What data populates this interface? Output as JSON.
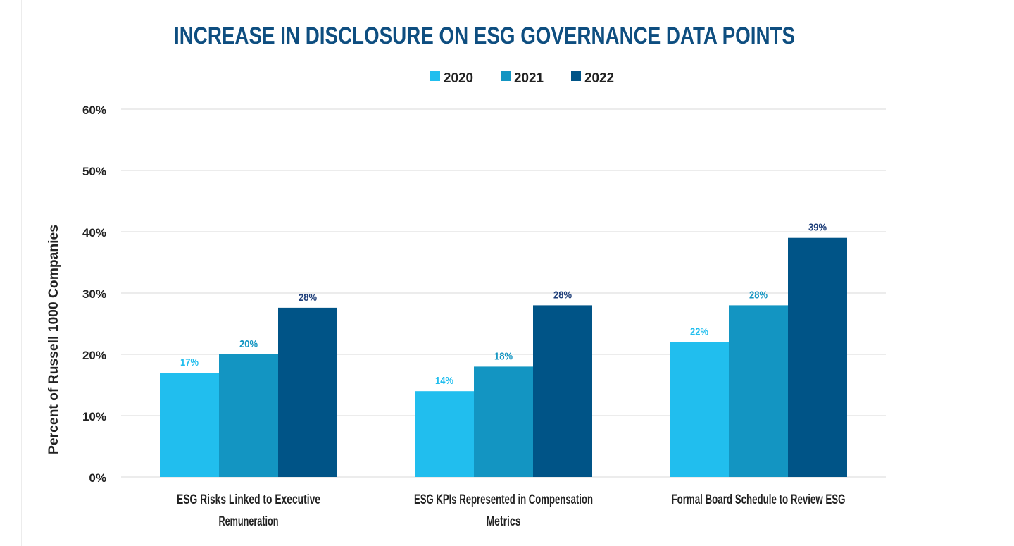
{
  "chart_data": {
    "type": "bar",
    "title": "INCREASE IN DISCLOSURE ON ESG GOVERNANCE DATA POINTS",
    "xlabel": "",
    "ylabel": "Percent of Russell 1000 Companies",
    "ylim": [
      0,
      60
    ],
    "yticks": [
      "0%",
      "10%",
      "20%",
      "30%",
      "40%",
      "50%",
      "60%"
    ],
    "grid": true,
    "legend_position": "top-center",
    "categories": [
      [
        "ESG Risks Linked to Executive",
        "Remuneration"
      ],
      [
        "ESG KPIs Represented in Compensation",
        "Metrics"
      ],
      [
        "Formal Board Schedule to Review ESG"
      ]
    ],
    "series": [
      {
        "name": "2020",
        "color": "#21BEEE",
        "label_color": "#21BEEE",
        "values": [
          17,
          14,
          22
        ],
        "labels": [
          "17%",
          "14%",
          "22%"
        ]
      },
      {
        "name": "2021",
        "color": "#1395C2",
        "label_color": "#1395C2",
        "values": [
          20,
          18,
          28
        ],
        "labels": [
          "20%",
          "18%",
          "28%"
        ]
      },
      {
        "name": "2022",
        "color": "#005487",
        "label_color": "#1F3F7A",
        "values": [
          27.6,
          28,
          39
        ],
        "labels": [
          "28%",
          "28%",
          "39%"
        ]
      }
    ]
  }
}
